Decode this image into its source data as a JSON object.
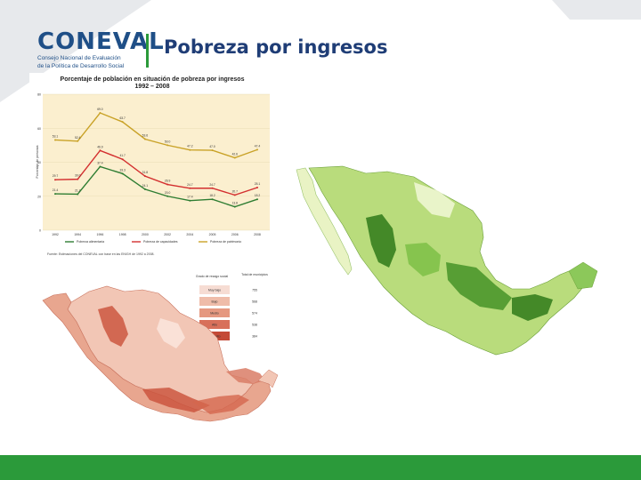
{
  "slide": {
    "logo_word": "CONEVAL",
    "logo_sub_1": "Consejo Nacional de Evaluación",
    "logo_sub_2": "de la Política de Desarrollo Social",
    "title": "Pobreza por ingresos"
  },
  "chart_data": {
    "type": "line",
    "title": "Porcentaje de población en situación de pobreza por ingresos",
    "subtitle": "1992 – 2008",
    "ylabel": "Porcentaje de personas",
    "x": [
      "1992",
      "1994",
      "1996",
      "1998",
      "2000",
      "2002",
      "2004",
      "2005",
      "2006",
      "2008"
    ],
    "ylim": [
      0,
      80
    ],
    "series": [
      {
        "name": "Pobreza alimentaria",
        "values": [
          21.4,
          21.2,
          37.4,
          33.3,
          24.1,
          20.0,
          17.4,
          18.2,
          13.8,
          18.2
        ]
      },
      {
        "name": "Pobreza de capacidades",
        "values": [
          29.7,
          30.0,
          46.9,
          41.7,
          31.8,
          26.9,
          24.7,
          24.7,
          20.7,
          25.1
        ]
      },
      {
        "name": "Pobreza de patrimonio",
        "values": [
          53.1,
          52.4,
          69.0,
          63.7,
          53.6,
          50.0,
          47.2,
          47.0,
          42.6,
          47.4
        ]
      }
    ],
    "labels": [
      "53.1",
      "52.4",
      "69.0",
      "63.7",
      "53.6",
      "50.0",
      "47.2",
      "47.0",
      "42.6",
      "47.4"
    ],
    "source": "Fuente: Estimaciones del CONEVAL con base en las ENIGH de 1992 a 2008."
  },
  "legend": {
    "header_left": "Grado de rezago social",
    "header_right": "Total de municipios",
    "rows": [
      {
        "label": "Muy bajo",
        "value": "755",
        "color": "#f6dcd3"
      },
      {
        "label": "Bajo",
        "value": "568",
        "color": "#efbca9"
      },
      {
        "label": "Medio",
        "value": "574",
        "color": "#e59880"
      },
      {
        "label": "Alto",
        "value": "538",
        "color": "#d8705a"
      },
      {
        "label": "Muy alto",
        "value": "384",
        "color": "#c44a36"
      }
    ]
  }
}
